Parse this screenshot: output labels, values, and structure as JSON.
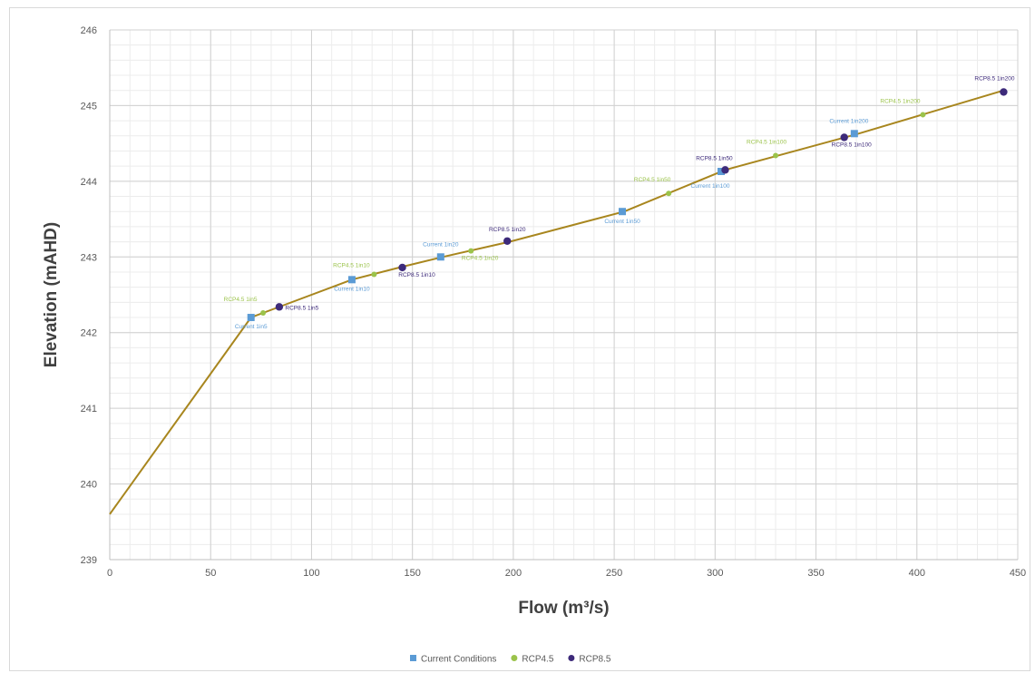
{
  "chart_data": {
    "type": "scatter",
    "title": "",
    "xlabel": "Flow (m³/s)",
    "ylabel": "Elevation (mAHD)",
    "xlim": [
      0,
      450
    ],
    "ylim": [
      239,
      246
    ],
    "xticks": [
      0,
      50,
      100,
      150,
      200,
      250,
      300,
      350,
      400,
      450
    ],
    "yticks": [
      239,
      240,
      241,
      242,
      243,
      244,
      245,
      246
    ],
    "grid": true,
    "minor_grid": true,
    "legend_position": "bottom",
    "rating_curve": {
      "color": "#a8861e",
      "x": [
        0,
        70,
        85,
        120,
        145,
        165,
        198,
        255,
        305,
        370,
        443
      ],
      "y": [
        239.6,
        242.2,
        242.35,
        242.7,
        242.87,
        243.0,
        243.2,
        243.6,
        244.15,
        244.62,
        245.2
      ]
    },
    "series": [
      {
        "name": "Current Conditions",
        "color": "#5b9bd5",
        "marker": "square",
        "points": [
          {
            "x": 70,
            "y": 242.2,
            "label": "Current 1in5"
          },
          {
            "x": 120,
            "y": 242.7,
            "label": "Current 1in10"
          },
          {
            "x": 164,
            "y": 243.0,
            "label": "Current 1in20"
          },
          {
            "x": 254,
            "y": 243.6,
            "label": "Current 1in50"
          },
          {
            "x": 303,
            "y": 244.13,
            "label": "Current 1in100"
          },
          {
            "x": 369,
            "y": 244.63,
            "label": "Current 1in200"
          }
        ]
      },
      {
        "name": "RCP4.5",
        "color": "#9bc34b",
        "marker": "circle",
        "points": [
          {
            "x": 76,
            "y": 242.26,
            "label": "RCP4.5 1in5"
          },
          {
            "x": 131,
            "y": 242.77,
            "label": "RCP4.5 1in10"
          },
          {
            "x": 179,
            "y": 243.08,
            "label": "RCP4.5 1in20"
          },
          {
            "x": 277,
            "y": 243.84,
            "label": "RCP4.5 1in50"
          },
          {
            "x": 330,
            "y": 244.34,
            "label": "RCP4.5 1in100"
          },
          {
            "x": 403,
            "y": 244.88,
            "label": "RCP4.5 1in200"
          }
        ]
      },
      {
        "name": "RCP8.5",
        "color": "#3d2a7a",
        "marker": "circle",
        "points": [
          {
            "x": 84,
            "y": 242.34,
            "label": "RCP8.5 1in5"
          },
          {
            "x": 145,
            "y": 242.86,
            "label": "RCP8.5 1in10"
          },
          {
            "x": 197,
            "y": 243.21,
            "label": "RCP8.5 1in20"
          },
          {
            "x": 305,
            "y": 244.15,
            "label": "RCP8.5 1in50"
          },
          {
            "x": 364,
            "y": 244.58,
            "label": "RCP8.5 1in100"
          },
          {
            "x": 443,
            "y": 245.18,
            "label": "RCP8.5 1in200"
          }
        ]
      }
    ]
  }
}
